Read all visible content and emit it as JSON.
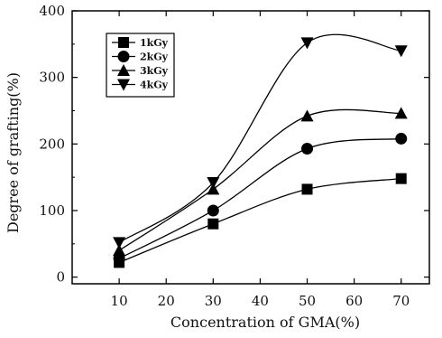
{
  "chart_data": {
    "type": "line",
    "title": "",
    "xlabel": "Concentration of GMA(%)",
    "ylabel": "Degree of grafting(%)",
    "x": [
      10,
      30,
      50,
      70
    ],
    "xlim": [
      0,
      76
    ],
    "ylim": [
      -10,
      400
    ],
    "xticks": [
      10,
      20,
      30,
      40,
      50,
      60,
      70
    ],
    "yticks": [
      0,
      100,
      200,
      300,
      400
    ],
    "grid": false,
    "legend_position": "top-left",
    "series": [
      {
        "name": "1kGy",
        "marker": "square",
        "values": [
          22,
          80,
          132,
          148
        ]
      },
      {
        "name": "2kGy",
        "marker": "circle",
        "values": [
          28,
          100,
          193,
          208
        ]
      },
      {
        "name": "3kGy",
        "marker": "triangle-up",
        "values": [
          40,
          132,
          242,
          246
        ]
      },
      {
        "name": "4kGy",
        "marker": "triangle-down",
        "values": [
          52,
          142,
          352,
          340
        ]
      }
    ],
    "colors": {
      "line": "#000000",
      "axis": "#000000"
    }
  }
}
